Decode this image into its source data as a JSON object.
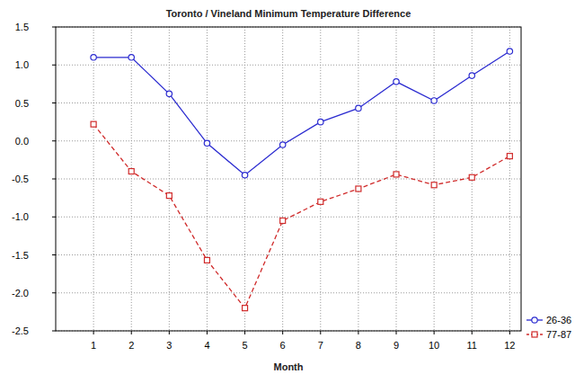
{
  "chart_data": {
    "type": "line",
    "title": "Toronto / Vineland Minimum Temperature Difference",
    "x_label": "Month",
    "x": [
      1,
      2,
      3,
      4,
      5,
      6,
      7,
      8,
      9,
      10,
      11,
      12
    ],
    "xlim": [
      0,
      12.3
    ],
    "xticks": [
      1,
      2,
      3,
      4,
      5,
      6,
      7,
      8,
      9,
      10,
      11,
      12
    ],
    "ylim": [
      -2.5,
      1.5
    ],
    "yticks": [
      {
        "value": -2.5,
        "label": "-2.5"
      },
      {
        "value": -2,
        "label": "-2.0"
      },
      -1.5,
      {
        "value": -1,
        "label": "-1.0"
      },
      -0.5,
      {
        "value": 0,
        "label": "0.0"
      },
      0.5,
      {
        "value": 1,
        "label": "1.0"
      },
      1.5
    ],
    "grid": true,
    "legend": "lower right",
    "series": [
      {
        "name": "26-36",
        "color": "#2b2bd0",
        "marker": "circle",
        "line_style": "solid",
        "values": [
          1.1,
          1.1,
          0.62,
          -0.03,
          -0.45,
          -0.05,
          0.25,
          0.43,
          0.78,
          0.53,
          0.86,
          1.18
        ]
      },
      {
        "name": "77-87",
        "color": "#d02b2b",
        "marker": "square",
        "line_style": "dashed",
        "values": [
          0.22,
          -0.4,
          -0.72,
          -1.57,
          -2.2,
          -1.05,
          -0.8,
          -0.63,
          -0.44,
          -0.58,
          -0.48,
          -0.2
        ]
      }
    ]
  }
}
